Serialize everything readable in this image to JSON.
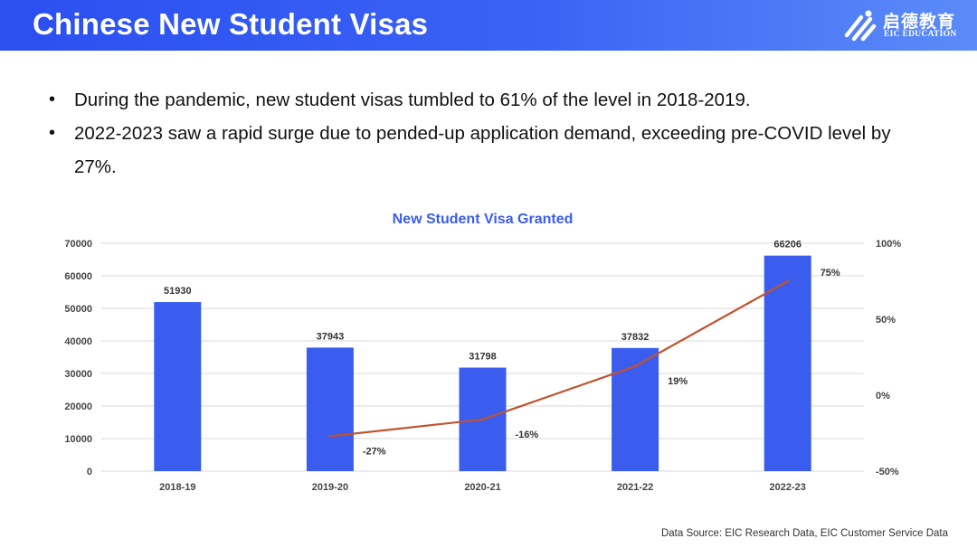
{
  "header": {
    "title": "Chinese New Student Visas",
    "logo_cn": "启德教育",
    "logo_en": "EIC EDUCATION"
  },
  "bullets": [
    "During the pandemic, new student visas tumbled to 61% of the level in 2018-2019.",
    "2022-2023 saw a rapid surge due to pended-up application demand, exceeding pre-COVID level by 27%."
  ],
  "bullet_symbol": "•",
  "chart_data": {
    "type": "bar",
    "title": "New Student Visa Granted",
    "categories": [
      "2018-19",
      "2019-20",
      "2020-21",
      "2021-22",
      "2022-23"
    ],
    "series": [
      {
        "type": "bar",
        "axis": "left",
        "values": [
          51930,
          37943,
          31798,
          37832,
          66206
        ],
        "labels": [
          "51930",
          "37943",
          "31798",
          "37832",
          "66206"
        ]
      },
      {
        "type": "line",
        "axis": "right",
        "values": [
          null,
          -27,
          -16,
          19,
          75
        ],
        "labels": [
          "",
          "-27%",
          "-16%",
          "19%",
          "75%"
        ]
      }
    ],
    "ylim": [
      0,
      70000
    ],
    "yticks": [
      "0",
      "10000",
      "20000",
      "30000",
      "40000",
      "50000",
      "60000",
      "70000"
    ],
    "y2lim": [
      -50,
      100
    ],
    "y2ticks": [
      "-50%",
      "0%",
      "50%",
      "100%"
    ],
    "grid": true,
    "legend": "none",
    "colors": {
      "bar": "#3a5df0",
      "line": "#c0522d",
      "title": "#3a5df0"
    }
  },
  "footer": {
    "source": "Data Source: EIC Research Data, EIC Customer Service Data"
  }
}
